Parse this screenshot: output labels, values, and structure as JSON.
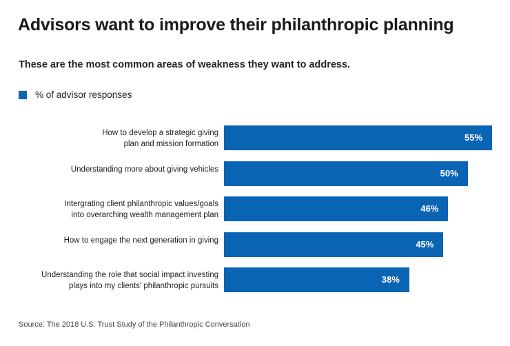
{
  "chart_data": {
    "type": "bar",
    "orientation": "horizontal",
    "title": "Advisors want to improve their philanthropic planning",
    "subtitle": "These are the most common areas of weakness they want to address.",
    "legend": {
      "position": "top-left",
      "entries": [
        "% of advisor responses"
      ]
    },
    "series": [
      {
        "name": "% of advisor responses",
        "color": "#0a64b4"
      }
    ],
    "categories": [
      "How to develop a strategic giving\nplan and mission formation",
      "Understanding more about giving vehicles",
      "Intergrating client philanthropic values/goals\ninto overarching wealth management plan",
      "How to engage the next generation in giving",
      "Understanding the role that social impact investing\nplays into my clients' philanthropic pursuits"
    ],
    "values": [
      55,
      50,
      46,
      45,
      38
    ],
    "data_labels": [
      "55%",
      "50%",
      "46%",
      "45%",
      "38%"
    ],
    "xlim": [
      0,
      55
    ],
    "grid": false,
    "source": "Source: The 2018 U.S. Trust Study of the Philanthropic Conversation"
  }
}
